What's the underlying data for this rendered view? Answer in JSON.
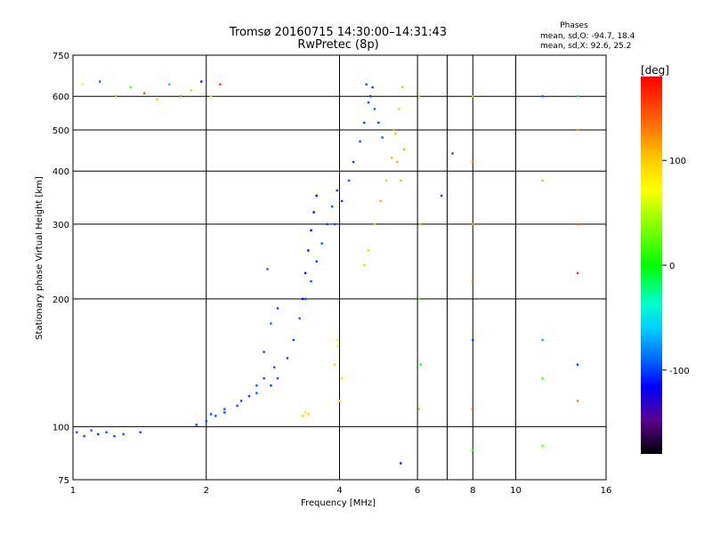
{
  "header": {
    "title_line1": "Tromsø 20160715 14:30:00–14:31:43",
    "title_line2": "RwPretec (8p)"
  },
  "stats": {
    "heading": "Phases",
    "line_o": "mean, sd,O: -94.7, 18.4",
    "line_x": "mean, sd,X:  92.6, 25.2"
  },
  "colorbar": {
    "label": "[deg]",
    "range": [
      -180,
      180
    ],
    "ticks": [
      {
        "value": 100,
        "label": "100"
      },
      {
        "value": 0,
        "label": "0"
      },
      {
        "value": -100,
        "label": "-100"
      }
    ]
  },
  "chart_data": {
    "type": "scatter",
    "xlabel": "Frequency [MHz]",
    "ylabel": "Stationary phase Virtual Height [km]",
    "x_scale": "log",
    "y_scale": "log",
    "xlim": [
      1,
      16
    ],
    "ylim": [
      75,
      750
    ],
    "grid": true,
    "x_ticks": [
      {
        "value": 1,
        "label": "1"
      },
      {
        "value": 2,
        "label": "2"
      },
      {
        "value": 4,
        "label": "4"
      },
      {
        "value": 6,
        "label": "6"
      },
      {
        "value": 8,
        "label": "8"
      },
      {
        "value": 10,
        "label": "10"
      },
      {
        "value": 16,
        "label": "16"
      }
    ],
    "x_grid_only": [
      7
    ],
    "y_ticks": [
      {
        "value": 75,
        "label": "75"
      },
      {
        "value": 100,
        "label": "100"
      },
      {
        "value": 200,
        "label": "200"
      },
      {
        "value": 300,
        "label": "300"
      },
      {
        "value": 400,
        "label": "400"
      },
      {
        "value": 500,
        "label": "500"
      },
      {
        "value": 600,
        "label": "600"
      },
      {
        "value": 750,
        "label": "750"
      }
    ],
    "color_variable": "phase [deg]",
    "series": [
      {
        "points": [
          [
            1.02,
            97,
            -95
          ],
          [
            1.06,
            95,
            -100
          ],
          [
            1.1,
            98,
            -90
          ],
          [
            1.14,
            96,
            -105
          ],
          [
            1.19,
            97,
            -95
          ],
          [
            1.24,
            95,
            -100
          ],
          [
            1.3,
            96,
            -92
          ],
          [
            1.42,
            97,
            -98
          ]
        ]
      },
      {
        "points": [
          [
            1.9,
            101,
            -95
          ],
          [
            2.0,
            103,
            -98
          ],
          [
            2.1,
            106,
            -92
          ],
          [
            2.2,
            108,
            -100
          ],
          [
            2.35,
            112,
            -95
          ],
          [
            2.5,
            118,
            -97
          ],
          [
            2.6,
            125,
            -92
          ],
          [
            2.7,
            130,
            -98
          ],
          [
            2.85,
            138,
            -95
          ]
        ]
      },
      {
        "points": [
          [
            2.05,
            107,
            -100
          ],
          [
            2.2,
            110,
            -95
          ],
          [
            2.4,
            115,
            -98
          ],
          [
            2.6,
            120,
            -92
          ],
          [
            2.8,
            125,
            -100
          ]
        ]
      },
      {
        "points": [
          [
            2.7,
            150,
            -95
          ],
          [
            2.8,
            175,
            -90
          ],
          [
            2.9,
            190,
            -100
          ],
          [
            2.75,
            235,
            -92
          ]
        ]
      },
      {
        "points": [
          [
            2.9,
            130,
            -95
          ],
          [
            3.05,
            145,
            -100
          ],
          [
            3.15,
            160,
            -98
          ],
          [
            3.25,
            180,
            -92
          ],
          [
            3.35,
            200,
            -97
          ],
          [
            3.45,
            220,
            -95
          ],
          [
            3.55,
            245,
            -100
          ],
          [
            3.65,
            270,
            -93
          ],
          [
            3.75,
            300,
            -98
          ],
          [
            3.85,
            330,
            -95
          ],
          [
            3.95,
            360,
            -100
          ]
        ]
      },
      {
        "points": [
          [
            3.3,
            200,
            -120
          ],
          [
            3.35,
            230,
            -125
          ],
          [
            3.4,
            260,
            -118
          ],
          [
            3.45,
            290,
            -122
          ],
          [
            3.5,
            320,
            -120
          ],
          [
            3.55,
            350,
            -115
          ]
        ]
      },
      {
        "points": [
          [
            3.9,
            300,
            -95
          ],
          [
            4.05,
            340,
            -100
          ],
          [
            4.2,
            380,
            -92
          ],
          [
            4.3,
            420,
            -98
          ],
          [
            4.45,
            470,
            -95
          ],
          [
            4.55,
            520,
            -100
          ],
          [
            4.65,
            580,
            -93
          ],
          [
            4.75,
            630,
            -97
          ]
        ]
      },
      {
        "points": [
          [
            4.6,
            640,
            -95
          ],
          [
            4.7,
            600,
            -100
          ],
          [
            4.8,
            560,
            -90
          ],
          [
            4.9,
            520,
            -98
          ],
          [
            5.0,
            480,
            -95
          ]
        ]
      },
      {
        "points": [
          [
            4.55,
            240,
            95
          ],
          [
            4.65,
            260,
            100
          ],
          [
            4.8,
            300,
            105
          ],
          [
            4.95,
            340,
            110
          ],
          [
            5.1,
            380,
            100
          ],
          [
            5.25,
            430,
            108
          ],
          [
            5.35,
            490,
            102
          ],
          [
            5.45,
            560,
            98
          ],
          [
            5.55,
            630,
            105
          ]
        ]
      },
      {
        "points": [
          [
            5.3,
            500,
            115
          ],
          [
            5.4,
            420,
            110
          ],
          [
            5.5,
            380,
            108
          ],
          [
            5.6,
            450,
            112
          ]
        ]
      },
      {
        "points": [
          [
            4.0,
            115,
            85
          ],
          [
            4.05,
            130,
            80
          ],
          [
            3.9,
            140,
            90
          ]
        ]
      },
      {
        "points": [
          [
            3.3,
            106,
            90
          ],
          [
            3.35,
            108,
            88
          ],
          [
            3.4,
            107,
            92
          ]
        ]
      },
      {
        "points": [
          [
            3.95,
            160,
            75
          ],
          [
            3.97,
            155,
            80
          ]
        ]
      },
      {
        "points": [
          [
            1.05,
            640,
            70
          ],
          [
            1.15,
            650,
            -90
          ],
          [
            1.25,
            600,
            120
          ],
          [
            1.35,
            630,
            20
          ],
          [
            1.45,
            610,
            150
          ],
          [
            1.55,
            590,
            100
          ],
          [
            1.65,
            640,
            -60
          ],
          [
            1.75,
            600,
            130
          ],
          [
            1.85,
            620,
            40
          ],
          [
            1.95,
            650,
            -110
          ],
          [
            2.05,
            600,
            90
          ],
          [
            2.15,
            640,
            160
          ]
        ]
      },
      {
        "points": [
          [
            6.05,
            600,
            100
          ],
          [
            6.1,
            300,
            110
          ],
          [
            6.05,
            200,
            20
          ],
          [
            6.1,
            140,
            -5
          ],
          [
            6.05,
            110,
            30
          ]
        ]
      },
      {
        "points": [
          [
            8.0,
            600,
            110
          ],
          [
            8.0,
            420,
            130
          ],
          [
            8.0,
            300,
            120
          ],
          [
            8.0,
            220,
            140
          ],
          [
            8.0,
            160,
            -100
          ],
          [
            8.0,
            110,
            150
          ],
          [
            8.0,
            88,
            -10
          ]
        ]
      },
      {
        "points": [
          [
            11.5,
            600,
            -90
          ],
          [
            11.5,
            380,
            110
          ],
          [
            11.5,
            160,
            -70
          ],
          [
            11.5,
            130,
            20
          ],
          [
            11.5,
            90,
            30
          ]
        ]
      },
      {
        "points": [
          [
            13.8,
            600,
            -60
          ],
          [
            13.8,
            500,
            120
          ],
          [
            13.8,
            300,
            140
          ],
          [
            13.8,
            230,
            160
          ],
          [
            13.8,
            140,
            -100
          ],
          [
            13.8,
            115,
            130
          ]
        ]
      },
      {
        "points": [
          [
            7.2,
            440,
            -95
          ],
          [
            6.8,
            350,
            -100
          ],
          [
            5.5,
            82,
            -110
          ]
        ]
      }
    ]
  }
}
